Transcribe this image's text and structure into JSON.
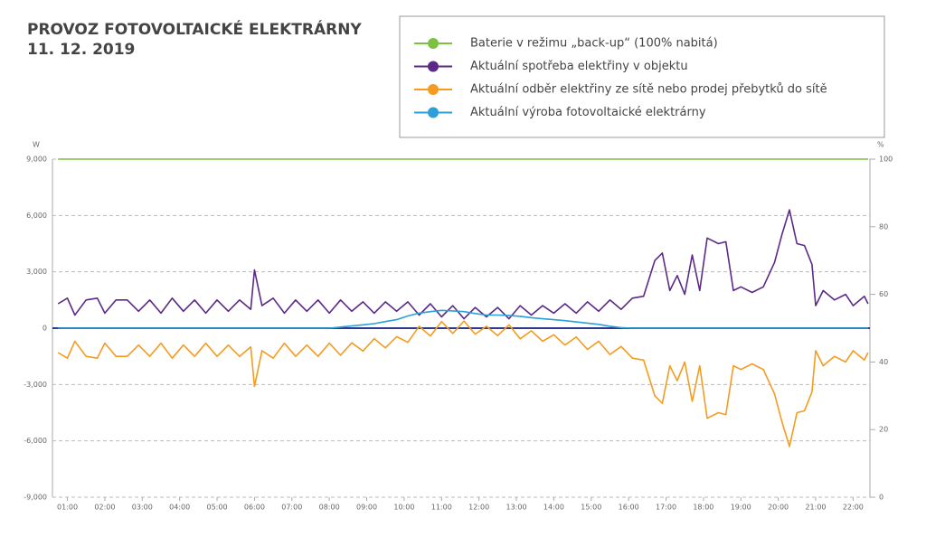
{
  "chart_data": {
    "type": "line",
    "title": "PROVOZ FOTOVOLTAICKÉ ELEKTRÁRNY",
    "subtitle": "11. 12. 2019",
    "ylabel": "W",
    "y2label": "%",
    "x": [
      0.75,
      1.0,
      1.2,
      1.5,
      1.8,
      2.0,
      2.3,
      2.6,
      2.9,
      3.2,
      3.5,
      3.8,
      4.1,
      4.4,
      4.7,
      5.0,
      5.3,
      5.6,
      5.9,
      6.0,
      6.2,
      6.5,
      6.8,
      7.1,
      7.4,
      7.7,
      8.0,
      8.3,
      8.6,
      8.9,
      9.2,
      9.5,
      9.8,
      10.1,
      10.4,
      10.7,
      11.0,
      11.3,
      11.6,
      11.9,
      12.2,
      12.5,
      12.8,
      13.1,
      13.4,
      13.7,
      14.0,
      14.3,
      14.6,
      14.9,
      15.2,
      15.5,
      15.8,
      16.1,
      16.4,
      16.7,
      16.9,
      17.1,
      17.3,
      17.5,
      17.7,
      17.9,
      18.1,
      18.4,
      18.6,
      18.8,
      19.0,
      19.3,
      19.6,
      19.9,
      20.1,
      20.3,
      20.5,
      20.7,
      20.9,
      21.0,
      21.2,
      21.5,
      21.8,
      22.0,
      22.3,
      22.4
    ],
    "xlim": [
      0.6,
      22.45
    ],
    "xticks": [
      {
        "value": 1,
        "label": "01:00"
      },
      {
        "value": 2,
        "label": "02:00"
      },
      {
        "value": 3,
        "label": "03:00"
      },
      {
        "value": 4,
        "label": "04:00"
      },
      {
        "value": 5,
        "label": "05:00"
      },
      {
        "value": 6,
        "label": "06:00"
      },
      {
        "value": 7,
        "label": "07:00"
      },
      {
        "value": 8,
        "label": "08:00"
      },
      {
        "value": 9,
        "label": "09:00"
      },
      {
        "value": 10,
        "label": "10:00"
      },
      {
        "value": 11,
        "label": "11:00"
      },
      {
        "value": 12,
        "label": "12:00"
      },
      {
        "value": 13,
        "label": "13:00"
      },
      {
        "value": 14,
        "label": "14:00"
      },
      {
        "value": 15,
        "label": "15:00"
      },
      {
        "value": 16,
        "label": "16:00"
      },
      {
        "value": 17,
        "label": "17:00"
      },
      {
        "value": 18,
        "label": "18:00"
      },
      {
        "value": 19,
        "label": "19:00"
      },
      {
        "value": 20,
        "label": "20:00"
      },
      {
        "value": 21,
        "label": "21:00"
      },
      {
        "value": 22,
        "label": "22:00"
      }
    ],
    "ylim": [
      -9000,
      9000
    ],
    "yticks": [
      {
        "value": -9000,
        "label": "-9,000"
      },
      {
        "value": -6000,
        "label": "-6,000"
      },
      {
        "value": -3000,
        "label": "-3,000"
      },
      0,
      {
        "value": 3000,
        "label": "3,000"
      },
      {
        "value": 6000,
        "label": "6,000"
      },
      {
        "value": 9000,
        "label": "9,000"
      }
    ],
    "y2lim": [
      0,
      100
    ],
    "y2ticks": [
      0,
      20,
      40,
      60,
      80,
      100
    ],
    "grid": true,
    "series": [
      {
        "name": "Baterie v režimu „back-up“ (100% nabitá)",
        "color": "#7dc142",
        "axis": "y2",
        "values": [
          100,
          100,
          100,
          100,
          100,
          100,
          100,
          100,
          100,
          100,
          100,
          100,
          100,
          100,
          100,
          100,
          100,
          100,
          100,
          100,
          100,
          100,
          100,
          100,
          100,
          100,
          100,
          100,
          100,
          100,
          100,
          100,
          100,
          100,
          100,
          100,
          100,
          100,
          100,
          100,
          100,
          100,
          100,
          100,
          100,
          100,
          100,
          100,
          100,
          100,
          100,
          100,
          100,
          100,
          100,
          100,
          100,
          100,
          100,
          100,
          100,
          100,
          100,
          100,
          100,
          100,
          100,
          100,
          100,
          100,
          100,
          100,
          100,
          100,
          100,
          100,
          100,
          100,
          100,
          100,
          100,
          100
        ]
      },
      {
        "name": "Aktuální spotřeba elektřiny v objektu",
        "color": "#5b2a86",
        "values": [
          1300,
          1600,
          700,
          1500,
          1600,
          800,
          1500,
          1500,
          900,
          1500,
          800,
          1600,
          900,
          1500,
          800,
          1500,
          900,
          1500,
          1000,
          3100,
          1200,
          1600,
          800,
          1500,
          900,
          1500,
          800,
          1500,
          900,
          1400,
          800,
          1400,
          900,
          1400,
          700,
          1300,
          600,
          1200,
          500,
          1100,
          600,
          1100,
          500,
          1200,
          700,
          1200,
          800,
          1300,
          800,
          1400,
          900,
          1500,
          1000,
          1600,
          1700,
          3600,
          4000,
          2000,
          2800,
          1800,
          3900,
          2000,
          4800,
          4500,
          4600,
          2000,
          2200,
          1900,
          2200,
          3500,
          5000,
          6300,
          4500,
          4400,
          3400,
          1200,
          2000,
          1500,
          1800,
          1200,
          1700,
          1300
        ]
      },
      {
        "name": "Aktuální odběr elektřiny ze sítě nebo prodej přebytků do sítě",
        "color": "#f39c1f",
        "values": [
          -1300,
          -1600,
          -700,
          -1500,
          -1600,
          -800,
          -1500,
          -1500,
          -900,
          -1500,
          -800,
          -1600,
          -900,
          -1500,
          -800,
          -1500,
          -900,
          -1500,
          -1000,
          -3100,
          -1200,
          -1600,
          -800,
          -1500,
          -900,
          -1500,
          -800,
          -1440,
          -780,
          -1220,
          -560,
          -1050,
          -450,
          -750,
          100,
          -420,
          350,
          -280,
          380,
          -320,
          100,
          -400,
          180,
          -570,
          -140,
          -700,
          -350,
          -900,
          -470,
          -1130,
          -700,
          -1400,
          -970,
          -1600,
          -1700,
          -3600,
          -4000,
          -2000,
          -2800,
          -1800,
          -3900,
          -2000,
          -4800,
          -4500,
          -4600,
          -2000,
          -2200,
          -1900,
          -2200,
          -3500,
          -5000,
          -6300,
          -4500,
          -4400,
          -3400,
          -1200,
          -2000,
          -1500,
          -1800,
          -1200,
          -1700,
          -1300
        ]
      },
      {
        "name": "Aktuální výroba fotovoltaické elektrárny",
        "color": "#2a9fd8",
        "values": [
          0,
          0,
          0,
          0,
          0,
          0,
          0,
          0,
          0,
          0,
          0,
          0,
          0,
          0,
          0,
          0,
          0,
          0,
          0,
          0,
          0,
          0,
          0,
          0,
          0,
          0,
          0,
          60,
          120,
          180,
          240,
          350,
          450,
          650,
          800,
          880,
          950,
          920,
          880,
          780,
          700,
          700,
          680,
          630,
          560,
          500,
          450,
          400,
          330,
          270,
          200,
          100,
          30,
          0,
          0,
          0,
          0,
          0,
          0,
          0,
          0,
          0,
          0,
          0,
          0,
          0,
          0,
          0,
          0,
          0,
          0,
          0,
          0,
          0,
          0,
          0,
          0,
          0,
          0,
          0,
          0,
          0
        ]
      }
    ]
  }
}
